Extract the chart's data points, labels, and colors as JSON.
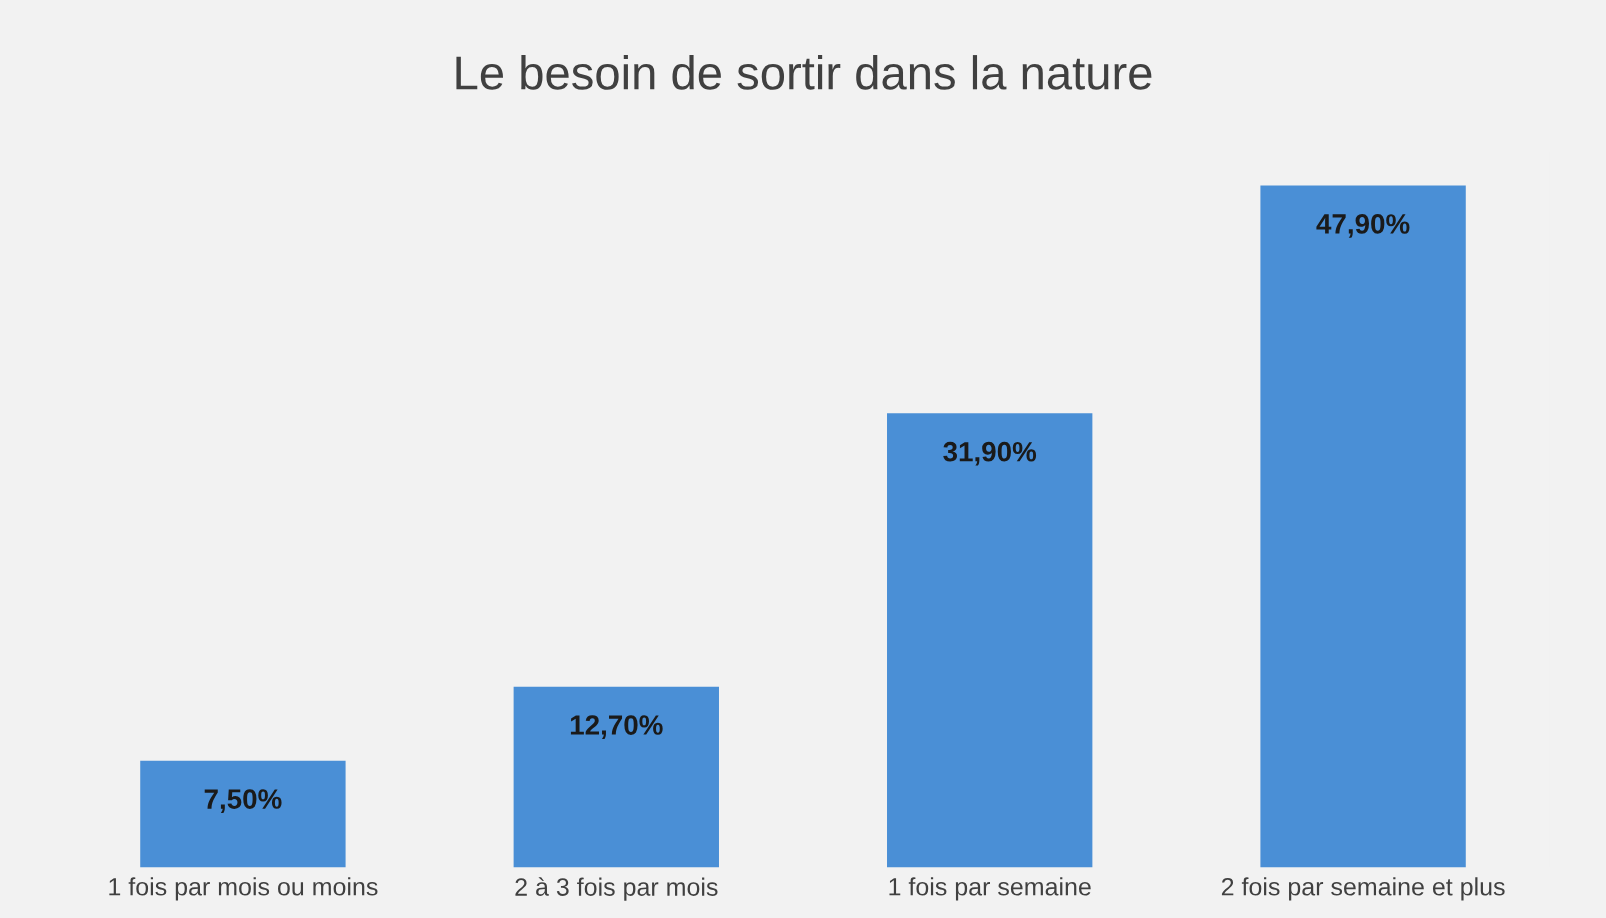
{
  "chart_data": {
    "type": "bar",
    "title": "Le besoin de sortir dans la nature",
    "categories": [
      "1 fois par mois ou moins",
      "2 à 3 fois par mois",
      "1 fois par semaine",
      "2 fois par semaine et plus"
    ],
    "values": [
      7.5,
      12.7,
      31.9,
      47.9
    ],
    "value_labels": [
      "7,50%",
      "12,70%",
      "31,90%",
      "47,90%"
    ],
    "color": "#4a8fd6",
    "grid": false,
    "legend": false
  }
}
